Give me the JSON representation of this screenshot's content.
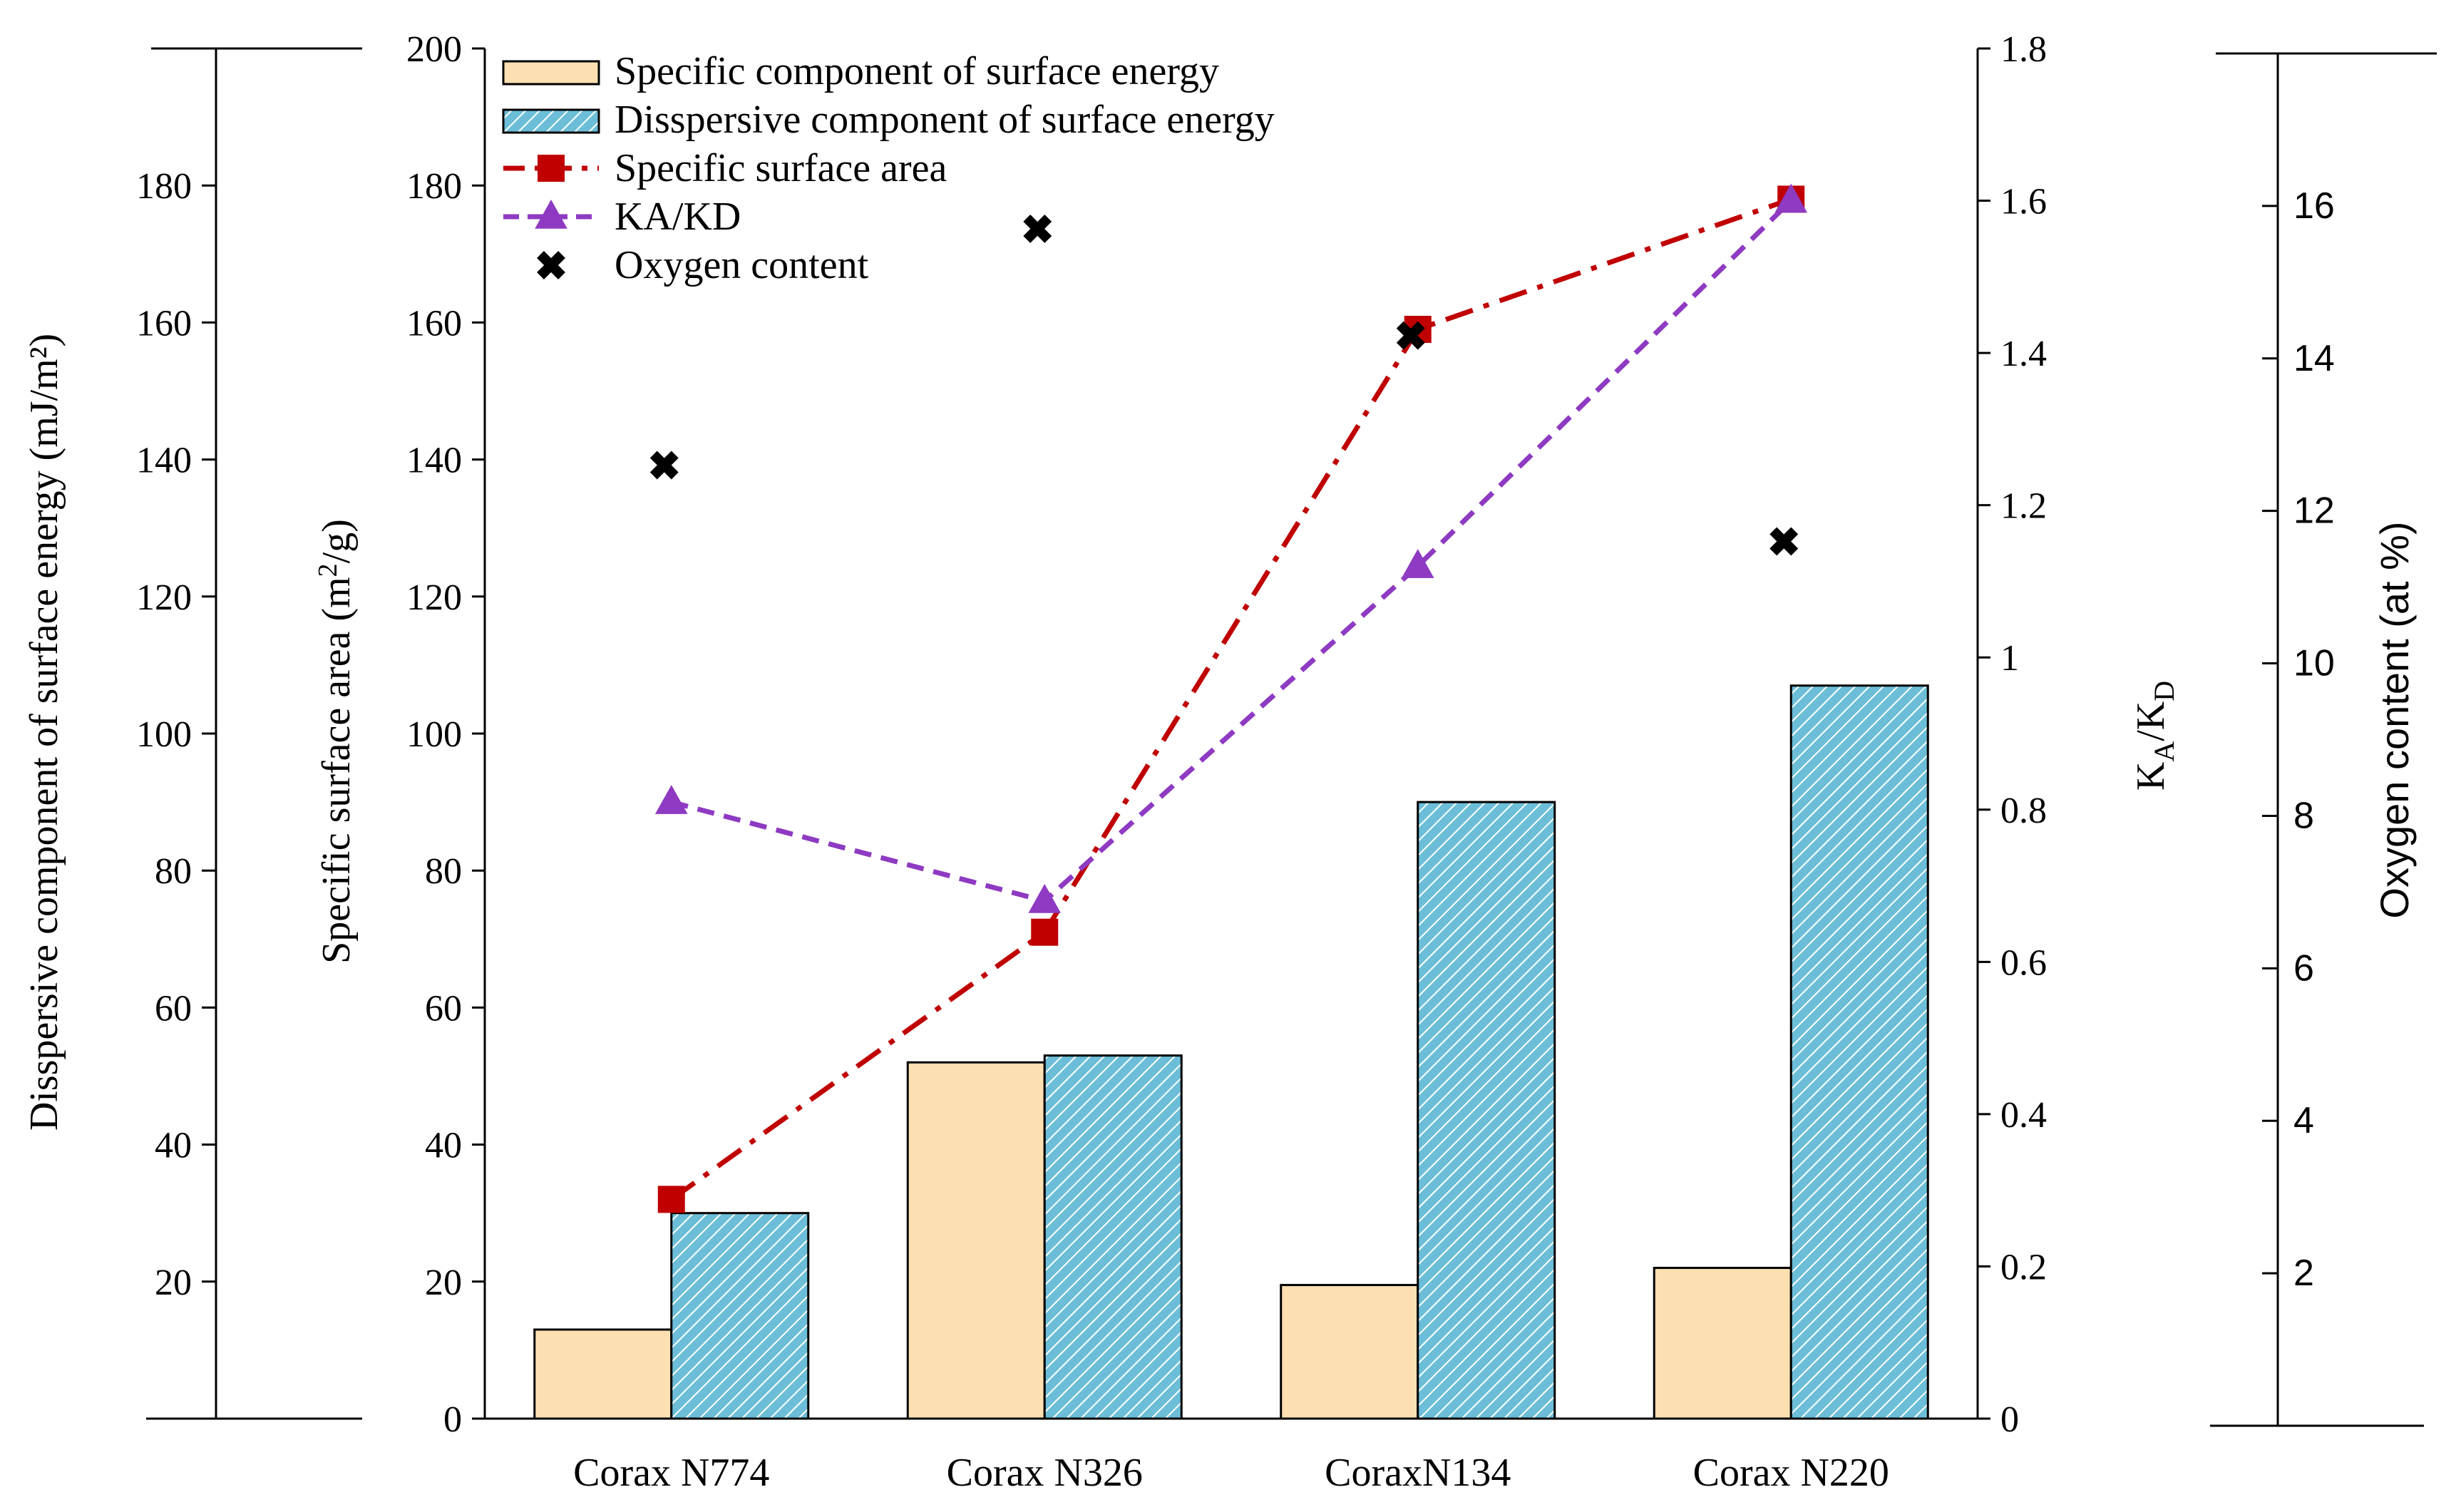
{
  "chart_data": {
    "type": "bar",
    "categories": [
      "Corax N774",
      "Corax N326",
      "CoraxN134",
      "Corax N220"
    ],
    "series": [
      {
        "name": "Specific component of surface energy",
        "kind": "bar",
        "axis": "surface_energy",
        "color": "#FDE0B2",
        "values": [
          13,
          52,
          19.5,
          22
        ]
      },
      {
        "name": "Disspersive component of surface energy",
        "kind": "bar",
        "axis": "surface_energy",
        "color": "#6CBED8",
        "values": [
          30,
          53,
          90,
          107
        ]
      },
      {
        "name": "Specific surface area",
        "kind": "line",
        "axis": "surface_area",
        "color": "#C00000",
        "marker": "square",
        "values": [
          32,
          71,
          159,
          178
        ]
      },
      {
        "name": "KA/KD",
        "kind": "line",
        "axis": "ka_kd",
        "color": "#8E3AC2",
        "marker": "triangle",
        "values": [
          0.81,
          0.68,
          1.12,
          1.6
        ]
      },
      {
        "name": "Oxygen content",
        "kind": "scatter",
        "axis": "oxygen",
        "color": "#000000",
        "marker": "x",
        "values": [
          12.6,
          15.7,
          14.3,
          11.6
        ]
      }
    ],
    "axes": {
      "surface_energy": {
        "label": "Disspersive component of surface energy (mJ/m²)",
        "range": [
          0,
          200
        ],
        "ticks": [
          20,
          40,
          60,
          80,
          100,
          120,
          140,
          160,
          180
        ]
      },
      "surface_area": {
        "label": "Specific surface area (m²/g)",
        "range": [
          0,
          200
        ],
        "ticks": [
          0,
          20,
          40,
          60,
          80,
          100,
          120,
          140,
          160,
          180,
          200
        ]
      },
      "ka_kd": {
        "label": "KA/KD",
        "range": [
          0,
          1.8
        ],
        "ticks": [
          "0",
          "0.2",
          "0.4",
          "0.6",
          "0.8",
          "1",
          "1.2",
          "1.4",
          "1.6",
          "1.8"
        ]
      },
      "oxygen": {
        "label": "Oxygen content (at %)",
        "range": [
          0,
          18
        ],
        "ticks": [
          2,
          4,
          6,
          8,
          10,
          12,
          14,
          16
        ]
      }
    },
    "legend_position": "top-left",
    "grid": false
  }
}
